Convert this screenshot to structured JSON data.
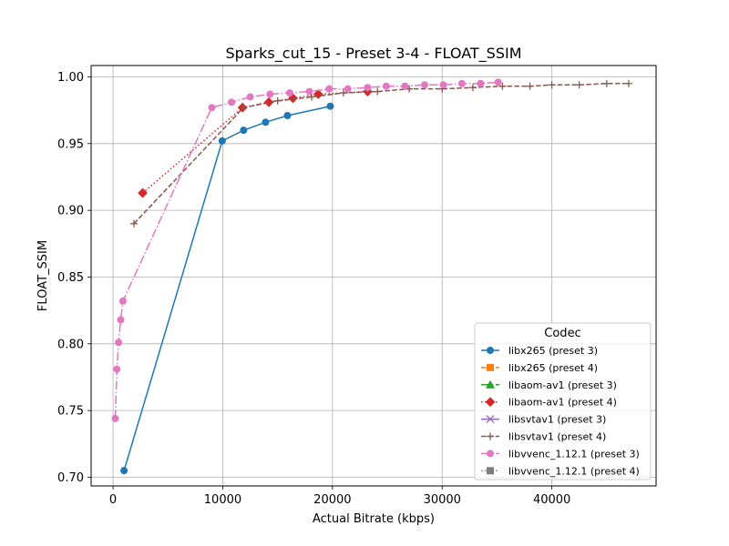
{
  "chart_data": {
    "type": "line",
    "title": "Sparks_cut_15 - Preset 3-4 - FLOAT_SSIM",
    "xlabel": "Actual Bitrate (kbps)",
    "ylabel": "FLOAT_SSIM",
    "xlim": [
      -2000,
      49500
    ],
    "ylim": [
      0.6935,
      1.0085
    ],
    "xticks": [
      0,
      10000,
      20000,
      30000,
      40000
    ],
    "yticks": [
      0.7,
      0.75,
      0.8,
      0.85,
      0.9,
      0.95,
      1.0
    ],
    "xtick_labels": [
      "0",
      "10000",
      "20000",
      "30000",
      "40000"
    ],
    "ytick_labels": [
      "0.70",
      "0.75",
      "0.80",
      "0.85",
      "0.90",
      "0.95",
      "1.00"
    ],
    "grid": true,
    "legend": {
      "title": "Codec",
      "placement": "lower-right"
    },
    "series": [
      {
        "name": "libx265 (preset 3)",
        "color": "#1f77b4",
        "marker": "circle",
        "linestyle": "solid",
        "points": [
          [
            1000,
            0.705
          ],
          [
            9950,
            0.952
          ],
          [
            11900,
            0.96
          ],
          [
            13900,
            0.966
          ],
          [
            15900,
            0.971
          ],
          [
            19800,
            0.978
          ]
        ]
      },
      {
        "name": "libx265 (preset 4)",
        "color": "#ff7f0e",
        "marker": "square",
        "linestyle": "dashed",
        "points": []
      },
      {
        "name": "libaom-av1 (preset 3)",
        "color": "#2ca02c",
        "marker": "triangle",
        "linestyle": "dashdot",
        "points": []
      },
      {
        "name": "libaom-av1 (preset 4)",
        "color": "#d62728",
        "marker": "diamond",
        "linestyle": "dotted",
        "points": [
          [
            2700,
            0.913
          ],
          [
            11800,
            0.977
          ],
          [
            14200,
            0.981
          ],
          [
            16400,
            0.984
          ],
          [
            18700,
            0.987
          ],
          [
            23200,
            0.989
          ]
        ]
      },
      {
        "name": "libsvtav1 (preset 3)",
        "color": "#9467bd",
        "marker": "x",
        "linestyle": "solid",
        "points": []
      },
      {
        "name": "libsvtav1 (preset 4)",
        "color": "#8c564b",
        "marker": "plus",
        "linestyle": "dashed",
        "points": [
          [
            1900,
            0.89
          ],
          [
            11900,
            0.977
          ],
          [
            15000,
            0.982
          ],
          [
            18100,
            0.985
          ],
          [
            21000,
            0.988
          ],
          [
            24100,
            0.989
          ],
          [
            27000,
            0.991
          ],
          [
            30000,
            0.991
          ],
          [
            32800,
            0.992
          ],
          [
            35500,
            0.993
          ],
          [
            38000,
            0.993
          ],
          [
            40000,
            0.994
          ],
          [
            42500,
            0.994
          ],
          [
            45000,
            0.995
          ],
          [
            47000,
            0.995
          ]
        ]
      },
      {
        "name": "libvvenc_1.12.1 (preset 3)",
        "color": "#e377c2",
        "marker": "circle",
        "linestyle": "dashdot",
        "points": [
          [
            200,
            0.744
          ],
          [
            350,
            0.781
          ],
          [
            500,
            0.801
          ],
          [
            700,
            0.818
          ],
          [
            900,
            0.832
          ],
          [
            9000,
            0.977
          ],
          [
            10800,
            0.981
          ],
          [
            12500,
            0.985
          ],
          [
            14300,
            0.987
          ],
          [
            16100,
            0.988
          ],
          [
            17900,
            0.989
          ],
          [
            19700,
            0.991
          ],
          [
            21400,
            0.991
          ],
          [
            23200,
            0.992
          ],
          [
            24900,
            0.993
          ],
          [
            26600,
            0.993
          ],
          [
            28400,
            0.994
          ],
          [
            30100,
            0.994
          ],
          [
            31800,
            0.995
          ],
          [
            33500,
            0.995
          ],
          [
            35100,
            0.996
          ]
        ]
      },
      {
        "name": "libvvenc_1.12.1 (preset 4)",
        "color": "#7f7f7f",
        "marker": "square",
        "linestyle": "dotted",
        "points": []
      }
    ]
  }
}
